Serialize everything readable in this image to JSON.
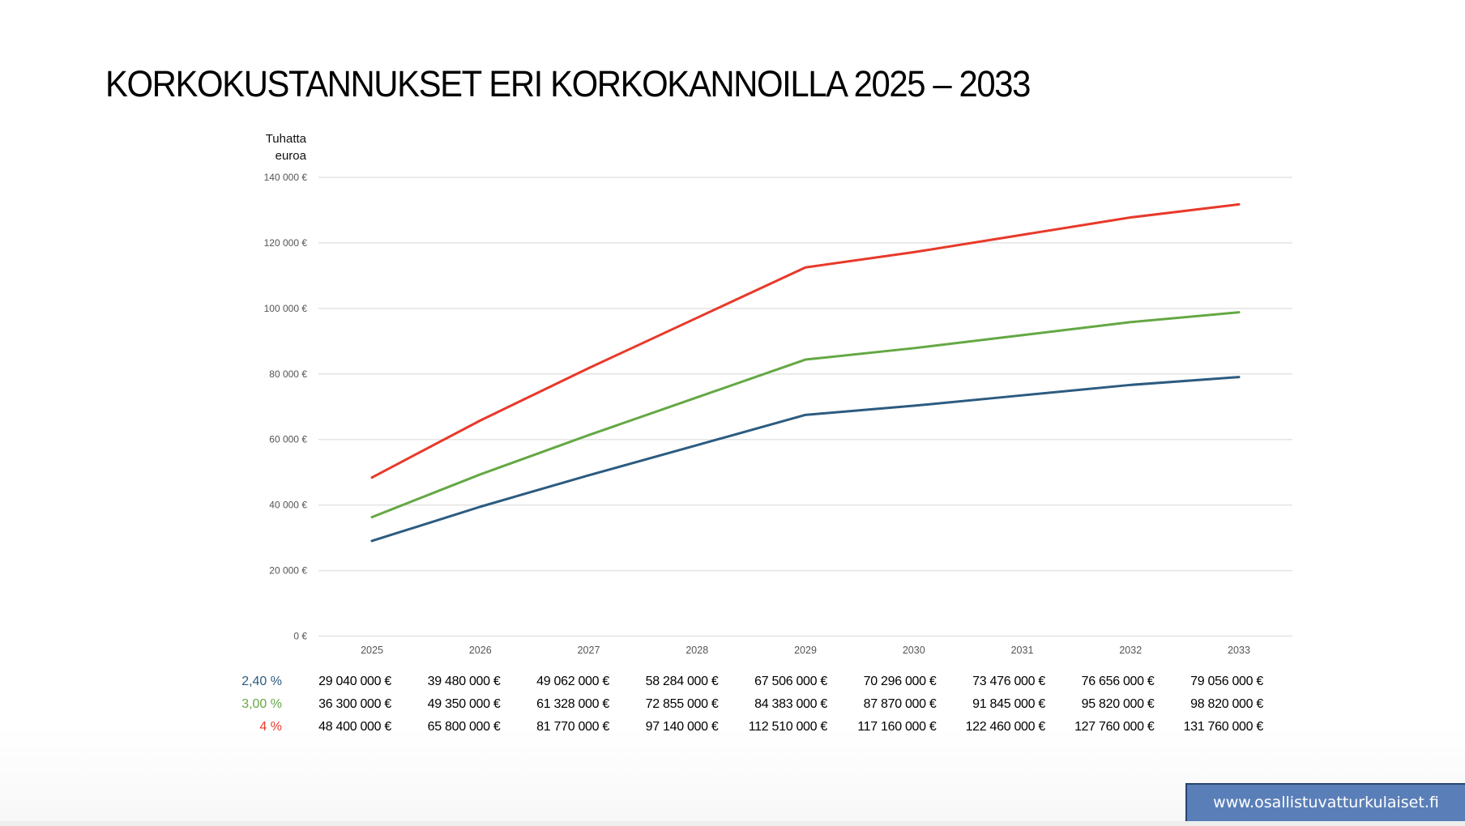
{
  "title": "KORKOKUSTANNUKSET ERI KORKOKANNOILLA 2025 – 2033",
  "unit_label_line1": "Tuhatta",
  "unit_label_line2": "euroa",
  "website_badge": "www.osallistuvatturkulaiset.fi",
  "colors": {
    "rate_2_40": "#2c5b80",
    "rate_3_00": "#64a844",
    "rate_4": "#e8392a",
    "gridline": "#e3e3e3",
    "badge_bg": "#5a7fb8"
  },
  "chart_data": {
    "type": "line",
    "title": "KORKOKUSTANNUKSET ERI KORKOKANNOILLA 2025 – 2033",
    "xlabel": "",
    "ylabel": "Tuhatta euroa",
    "ylim": [
      0,
      140000
    ],
    "yticks": [
      "0 €",
      "20 000 €",
      "40 000 €",
      "60 000 €",
      "80 000 €",
      "100 000 €",
      "120 000 €",
      "140 000 €"
    ],
    "grid": true,
    "legend_position": "table-below",
    "x": [
      "2025",
      "2026",
      "2027",
      "2028",
      "2029",
      "2030",
      "2031",
      "2032",
      "2033"
    ],
    "series": [
      {
        "name": "2,40 %",
        "color": "#2c5b80",
        "values": [
          29040,
          39480,
          49062,
          58284,
          67506,
          70296,
          73476,
          76656,
          79056
        ],
        "table_values": [
          "29 040 000 €",
          "39 480 000 €",
          "49 062 000 €",
          "58 284 000 €",
          "67 506 000 €",
          "70 296 000 €",
          "73 476 000 €",
          "76 656 000 €",
          "79 056 000 €"
        ]
      },
      {
        "name": "3,00 %",
        "color": "#64a844",
        "values": [
          36300,
          49350,
          61328,
          72855,
          84383,
          87870,
          91845,
          95820,
          98820
        ],
        "table_values": [
          "36 300 000 €",
          "49 350 000 €",
          "61 328 000 €",
          "72 855 000 €",
          "84 383 000 €",
          "87 870 000 €",
          "91 845 000 €",
          "95 820 000 €",
          "98 820 000 €"
        ]
      },
      {
        "name": "4 %",
        "color": "#e8392a",
        "values": [
          48400,
          65800,
          81770,
          97140,
          112510,
          117160,
          122460,
          127760,
          131760
        ],
        "table_values": [
          "48 400 000 €",
          "65 800 000 €",
          "81 770 000 €",
          "97 140 000 €",
          "112 510 000 €",
          "117 160 000 €",
          "122 460 000 €",
          "127 760 000 €",
          "131 760 000 €"
        ]
      }
    ]
  }
}
